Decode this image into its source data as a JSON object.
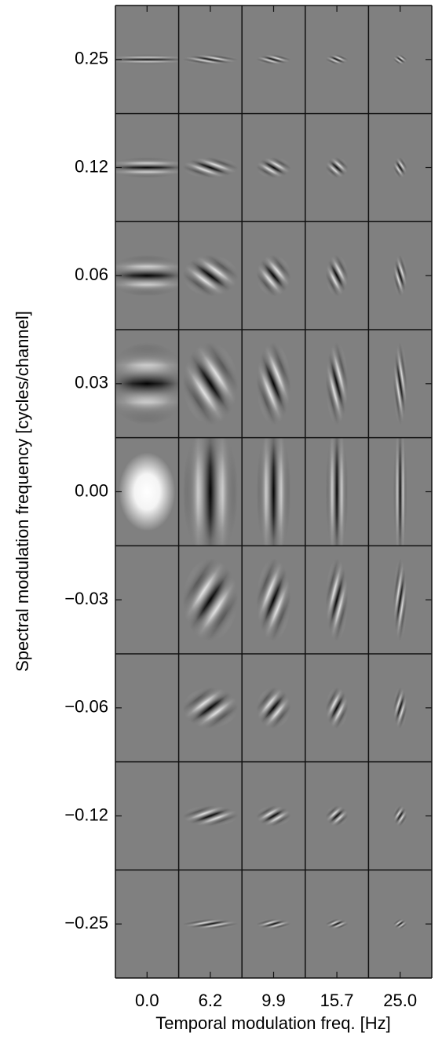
{
  "chart_data": {
    "type": "filter-grid",
    "x_label": "Temporal modulation freq. [Hz]",
    "y_label": "Spectral modulation frequency [cycles/channel]",
    "x_categories": [
      "0.0",
      "6.2",
      "9.9",
      "15.7",
      "25.0"
    ],
    "y_categories": [
      "0.25",
      "0.12",
      "0.06",
      "0.03",
      "0.00",
      "−0.03",
      "−0.06",
      "−0.12",
      "−0.25"
    ]
  }
}
